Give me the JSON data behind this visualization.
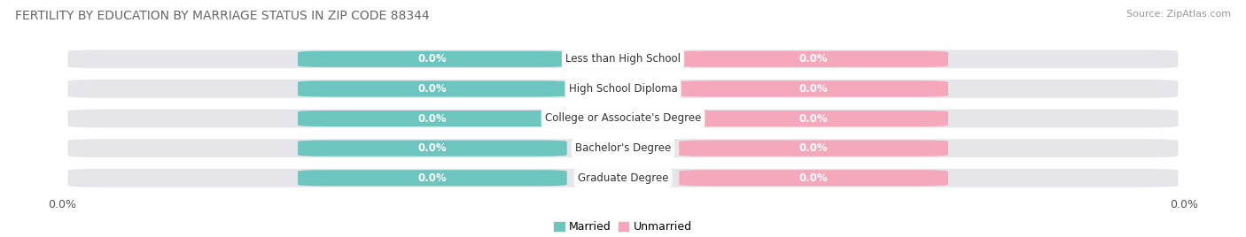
{
  "title": "FERTILITY BY EDUCATION BY MARRIAGE STATUS IN ZIP CODE 88344",
  "source": "Source: ZipAtlas.com",
  "categories": [
    "Less than High School",
    "High School Diploma",
    "College or Associate's Degree",
    "Bachelor's Degree",
    "Graduate Degree"
  ],
  "married_values": [
    0.0,
    0.0,
    0.0,
    0.0,
    0.0
  ],
  "unmarried_values": [
    0.0,
    0.0,
    0.0,
    0.0,
    0.0
  ],
  "married_color": "#6CC5BF",
  "unmarried_color": "#F5A8BC",
  "bar_bg_color": "#E6E6EA",
  "title_fontsize": 10,
  "source_fontsize": 8,
  "tick_fontsize": 9,
  "legend_fontsize": 9,
  "background_color": "#ffffff",
  "axis_label": "0.0%",
  "cat_label_color": "#333333",
  "val_label_color": "#ffffff"
}
